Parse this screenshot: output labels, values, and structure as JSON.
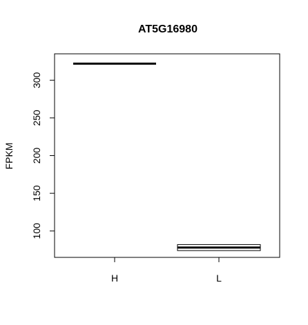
{
  "chart_data": {
    "type": "boxplot",
    "title": "AT5G16980",
    "xlabel": "",
    "ylabel": "FPKM",
    "ylim": [
      65,
      335
    ],
    "yticks": [
      100,
      150,
      200,
      250,
      300
    ],
    "categories": [
      "H",
      "L"
    ],
    "boxes": [
      {
        "category": "H",
        "min": 322,
        "q1": 322,
        "median": 322,
        "q3": 322,
        "max": 322
      },
      {
        "category": "L",
        "min": 74,
        "q1": 74,
        "median": 78,
        "q3": 82,
        "max": 82
      }
    ],
    "grid": false,
    "colors": {
      "stroke": "#000000",
      "background": "#ffffff"
    }
  }
}
